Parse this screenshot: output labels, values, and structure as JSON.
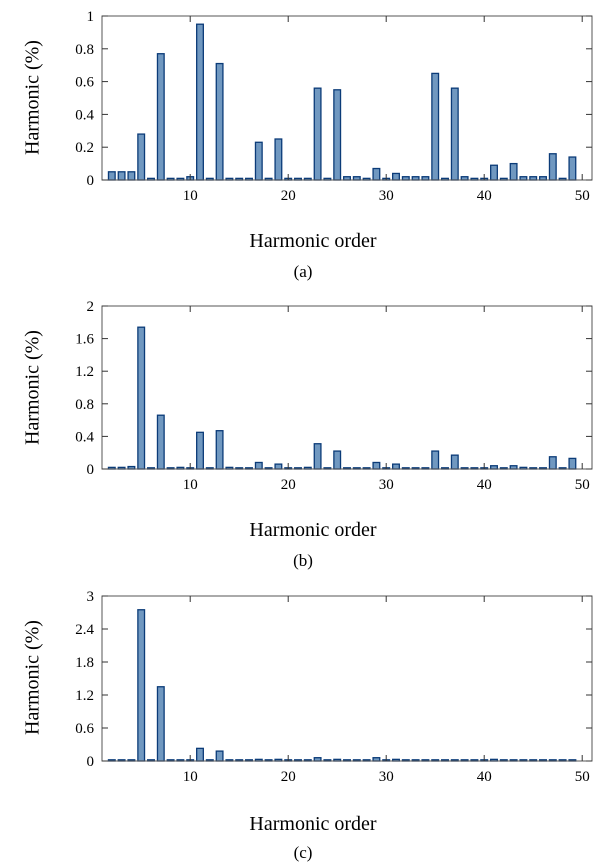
{
  "chart_data": [
    {
      "type": "bar",
      "caption": "(a)",
      "xlabel": "Harmonic order",
      "ylabel": "Harmonic (%)",
      "xlim": [
        1,
        51
      ],
      "ylim": [
        0,
        1
      ],
      "xticks": [
        10,
        20,
        30,
        40,
        50
      ],
      "yticks": [
        0,
        0.2,
        0.4,
        0.6,
        0.8,
        1
      ],
      "ytick_labels": [
        "0",
        "0.2",
        "0.4",
        "0.6",
        "0.8",
        "1"
      ],
      "bar_color": "#7098c0",
      "edge_color": "#0b3b78",
      "x": [
        2,
        3,
        4,
        5,
        6,
        7,
        8,
        9,
        10,
        11,
        12,
        13,
        14,
        15,
        16,
        17,
        18,
        19,
        20,
        21,
        22,
        23,
        24,
        25,
        26,
        27,
        28,
        29,
        30,
        31,
        32,
        33,
        34,
        35,
        36,
        37,
        38,
        39,
        40,
        41,
        42,
        43,
        44,
        45,
        46,
        47,
        48,
        49
      ],
      "values": [
        0.05,
        0.05,
        0.05,
        0.28,
        0.01,
        0.77,
        0.01,
        0.01,
        0.02,
        0.95,
        0.01,
        0.71,
        0.01,
        0.01,
        0.01,
        0.23,
        0.01,
        0.25,
        0.01,
        0.01,
        0.01,
        0.56,
        0.01,
        0.55,
        0.02,
        0.02,
        0.01,
        0.07,
        0.01,
        0.04,
        0.02,
        0.02,
        0.02,
        0.65,
        0.01,
        0.56,
        0.02,
        0.01,
        0.01,
        0.09,
        0.01,
        0.1,
        0.02,
        0.02,
        0.02,
        0.16,
        0.01,
        0.14
      ]
    },
    {
      "type": "bar",
      "caption": "(b)",
      "xlabel": "Harmonic order",
      "ylabel": "Harmonic (%)",
      "xlim": [
        1,
        51
      ],
      "ylim": [
        0,
        2
      ],
      "xticks": [
        10,
        20,
        30,
        40,
        50
      ],
      "yticks": [
        0,
        0.4,
        0.8,
        1.2,
        1.6,
        2
      ],
      "ytick_labels": [
        "0",
        "0.4",
        "0.8",
        "1.2",
        "1.6",
        "2"
      ],
      "bar_color": "#7098c0",
      "edge_color": "#0b3b78",
      "x": [
        2,
        3,
        4,
        5,
        6,
        7,
        8,
        9,
        10,
        11,
        12,
        13,
        14,
        15,
        16,
        17,
        18,
        19,
        20,
        21,
        22,
        23,
        24,
        25,
        26,
        27,
        28,
        29,
        30,
        31,
        32,
        33,
        34,
        35,
        36,
        37,
        38,
        39,
        40,
        41,
        42,
        43,
        44,
        45,
        46,
        47,
        48,
        49
      ],
      "values": [
        0.02,
        0.02,
        0.03,
        1.74,
        0.01,
        0.66,
        0.01,
        0.02,
        0.01,
        0.45,
        0.01,
        0.47,
        0.02,
        0.01,
        0.01,
        0.08,
        0.01,
        0.06,
        0.01,
        0.01,
        0.02,
        0.31,
        0.01,
        0.22,
        0.01,
        0.01,
        0.01,
        0.08,
        0.01,
        0.06,
        0.01,
        0.01,
        0.01,
        0.22,
        0.01,
        0.17,
        0.01,
        0.01,
        0.01,
        0.04,
        0.01,
        0.04,
        0.02,
        0.01,
        0.01,
        0.15,
        0.01,
        0.13
      ]
    },
    {
      "type": "bar",
      "caption": "(c)",
      "xlabel": "Harmonic order",
      "ylabel": "Harmonic (%)",
      "xlim": [
        1,
        51
      ],
      "ylim": [
        0,
        3
      ],
      "xticks": [
        10,
        20,
        30,
        40,
        50
      ],
      "yticks": [
        0,
        0.6,
        1.2,
        1.8,
        2.4,
        3
      ],
      "ytick_labels": [
        "0",
        "0.6",
        "1.2",
        "1.8",
        "2.4",
        "3"
      ],
      "bar_color": "#7098c0",
      "edge_color": "#0b3b78",
      "x": [
        2,
        3,
        4,
        5,
        6,
        7,
        8,
        9,
        10,
        11,
        12,
        13,
        14,
        15,
        16,
        17,
        18,
        19,
        20,
        21,
        22,
        23,
        24,
        25,
        26,
        27,
        28,
        29,
        30,
        31,
        32,
        33,
        34,
        35,
        36,
        37,
        38,
        39,
        40,
        41,
        42,
        43,
        44,
        45,
        46,
        47,
        48,
        49
      ],
      "values": [
        0.005,
        0.005,
        0.005,
        2.75,
        0.005,
        1.35,
        0.005,
        0.005,
        0.005,
        0.23,
        0.005,
        0.18,
        0.005,
        0.005,
        0.005,
        0.03,
        0.005,
        0.03,
        0.005,
        0.005,
        0.005,
        0.06,
        0.005,
        0.03,
        0.005,
        0.005,
        0.005,
        0.06,
        0.005,
        0.03,
        0.005,
        0.005,
        0.005,
        0.005,
        0.005,
        0.005,
        0.005,
        0.005,
        0.005,
        0.03,
        0.005,
        0.005,
        0.005,
        0.005,
        0.005,
        0.005,
        0.005,
        0.005
      ]
    }
  ]
}
